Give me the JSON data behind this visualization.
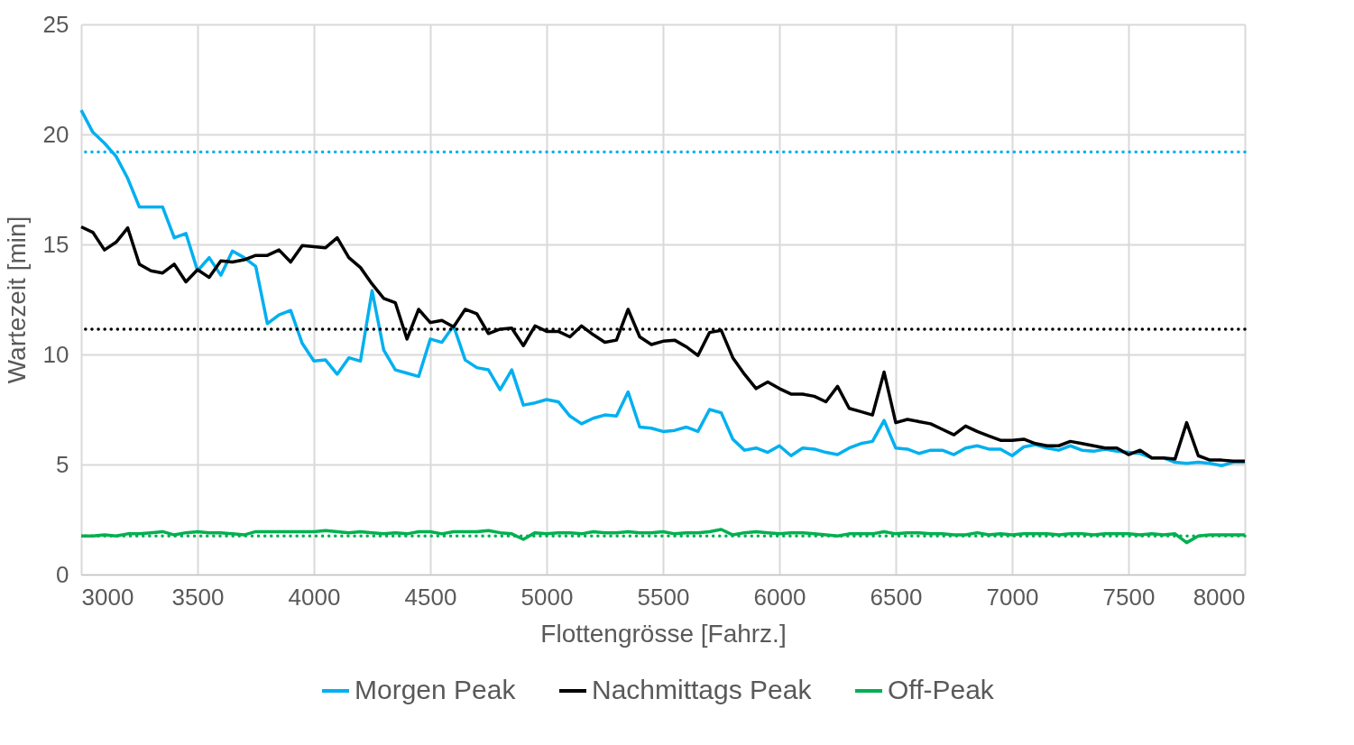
{
  "chart_data": {
    "type": "line",
    "xlabel": "Flottengrösse [Fahrz.]",
    "ylabel": "Wartezeit [min]",
    "x": [
      3000,
      3050,
      3100,
      3150,
      3200,
      3250,
      3300,
      3350,
      3400,
      3450,
      3500,
      3550,
      3600,
      3650,
      3700,
      3750,
      3800,
      3850,
      3900,
      3950,
      4000,
      4050,
      4100,
      4150,
      4200,
      4250,
      4300,
      4350,
      4400,
      4450,
      4500,
      4550,
      4600,
      4650,
      4700,
      4750,
      4800,
      4850,
      4900,
      4950,
      5000,
      5050,
      5100,
      5150,
      5200,
      5250,
      5300,
      5350,
      5400,
      5450,
      5500,
      5550,
      5600,
      5650,
      5700,
      5750,
      5800,
      5850,
      5900,
      5950,
      6000,
      6050,
      6100,
      6150,
      6200,
      6250,
      6300,
      6350,
      6400,
      6450,
      6500,
      6550,
      6600,
      6650,
      6700,
      6750,
      6800,
      6850,
      6900,
      6950,
      7000,
      7050,
      7100,
      7150,
      7200,
      7250,
      7300,
      7350,
      7400,
      7450,
      7500,
      7550,
      7600,
      7650,
      7700,
      7750,
      7800,
      7850,
      7900,
      7950,
      8000
    ],
    "series": [
      {
        "name": "Morgen Peak",
        "color": "#00b0f0",
        "values": [
          21.1,
          20.1,
          19.6,
          19.0,
          18.0,
          16.7,
          16.7,
          16.7,
          15.3,
          15.5,
          13.8,
          14.4,
          13.6,
          14.7,
          14.4,
          14.0,
          11.4,
          11.8,
          12.0,
          10.5,
          9.7,
          9.75,
          9.1,
          9.85,
          9.7,
          12.9,
          10.2,
          9.3,
          9.15,
          9.0,
          10.7,
          10.55,
          11.3,
          9.75,
          9.4,
          9.3,
          8.4,
          9.3,
          7.7,
          7.8,
          7.95,
          7.85,
          7.2,
          6.85,
          7.1,
          7.25,
          7.2,
          8.3,
          6.7,
          6.65,
          6.5,
          6.55,
          6.7,
          6.5,
          7.5,
          7.35,
          6.15,
          5.65,
          5.75,
          5.55,
          5.85,
          5.4,
          5.75,
          5.7,
          5.55,
          5.45,
          5.75,
          5.95,
          6.05,
          7.0,
          5.75,
          5.7,
          5.5,
          5.65,
          5.65,
          5.45,
          5.75,
          5.85,
          5.7,
          5.7,
          5.4,
          5.8,
          5.9,
          5.75,
          5.65,
          5.85,
          5.65,
          5.6,
          5.7,
          5.6,
          5.55,
          5.5,
          5.3,
          5.3,
          5.1,
          5.05,
          5.1,
          5.05,
          4.95,
          5.1,
          5.1
        ]
      },
      {
        "name": "Nachmittags Peak",
        "color": "#000000",
        "values": [
          15.8,
          15.55,
          14.75,
          15.1,
          15.75,
          14.1,
          13.8,
          13.7,
          14.1,
          13.3,
          13.85,
          13.5,
          14.25,
          14.2,
          14.3,
          14.5,
          14.5,
          14.75,
          14.2,
          14.95,
          14.9,
          14.85,
          15.3,
          14.4,
          13.95,
          13.2,
          12.55,
          12.35,
          10.7,
          12.05,
          11.45,
          11.55,
          11.25,
          12.05,
          11.85,
          10.95,
          11.15,
          11.2,
          10.4,
          11.3,
          11.05,
          11.05,
          10.8,
          11.3,
          10.9,
          10.55,
          10.65,
          12.05,
          10.8,
          10.45,
          10.6,
          10.65,
          10.35,
          9.95,
          11.0,
          11.1,
          9.85,
          9.1,
          8.45,
          8.75,
          8.45,
          8.2,
          8.2,
          8.1,
          7.85,
          8.55,
          7.55,
          7.4,
          7.25,
          9.2,
          6.9,
          7.05,
          6.95,
          6.85,
          6.6,
          6.35,
          6.75,
          6.5,
          6.3,
          6.1,
          6.1,
          6.15,
          5.95,
          5.85,
          5.85,
          6.05,
          5.95,
          5.85,
          5.75,
          5.75,
          5.45,
          5.65,
          5.3,
          5.3,
          5.25,
          6.9,
          5.4,
          5.2,
          5.2,
          5.15,
          5.15
        ]
      },
      {
        "name": "Off-Peak",
        "color": "#00b050",
        "values": [
          1.75,
          1.75,
          1.8,
          1.75,
          1.85,
          1.85,
          1.9,
          1.95,
          1.8,
          1.9,
          1.95,
          1.9,
          1.9,
          1.85,
          1.8,
          1.95,
          1.95,
          1.95,
          1.95,
          1.95,
          1.95,
          2.0,
          1.95,
          1.9,
          1.95,
          1.9,
          1.85,
          1.9,
          1.85,
          1.95,
          1.95,
          1.85,
          1.95,
          1.95,
          1.95,
          2.0,
          1.9,
          1.85,
          1.6,
          1.9,
          1.85,
          1.9,
          1.9,
          1.85,
          1.95,
          1.9,
          1.9,
          1.95,
          1.9,
          1.9,
          1.95,
          1.85,
          1.9,
          1.9,
          1.95,
          2.05,
          1.8,
          1.9,
          1.95,
          1.9,
          1.85,
          1.9,
          1.9,
          1.85,
          1.8,
          1.75,
          1.85,
          1.85,
          1.85,
          1.95,
          1.85,
          1.9,
          1.9,
          1.85,
          1.85,
          1.8,
          1.8,
          1.9,
          1.8,
          1.85,
          1.8,
          1.85,
          1.85,
          1.85,
          1.8,
          1.85,
          1.85,
          1.8,
          1.85,
          1.85,
          1.85,
          1.8,
          1.85,
          1.8,
          1.85,
          1.45,
          1.75,
          1.8,
          1.8,
          1.8,
          1.8
        ]
      }
    ],
    "ref_lines": [
      {
        "axis": "y",
        "value": 19.2,
        "color": "#00b0f0",
        "line_style": "dotted"
      },
      {
        "axis": "y",
        "value": 11.15,
        "color": "#000000",
        "line_style": "dotted"
      },
      {
        "axis": "y",
        "value": 1.75,
        "color": "#00b050",
        "line_style": "dotted"
      }
    ],
    "xlim": [
      3000,
      8000
    ],
    "xticks": [
      3000,
      3500,
      4000,
      4500,
      5000,
      5500,
      6000,
      6500,
      7000,
      7500,
      8000
    ],
    "ylim": [
      0,
      25
    ],
    "yticks": [
      0,
      5,
      10,
      15,
      20,
      25
    ],
    "grid": true,
    "legend": "bottom",
    "line_style": "solid",
    "marker": "none"
  }
}
